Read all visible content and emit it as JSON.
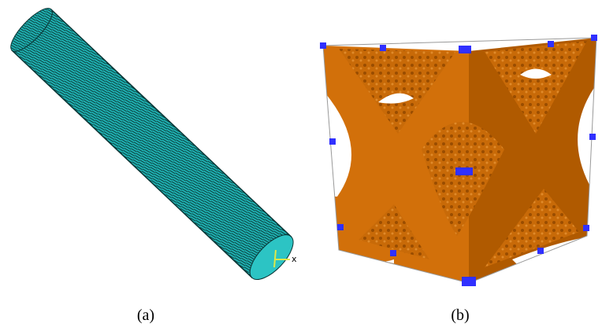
{
  "panels": [
    {
      "caption": "(a)",
      "axis_label": "x"
    },
    {
      "caption": "(b)"
    }
  ]
}
